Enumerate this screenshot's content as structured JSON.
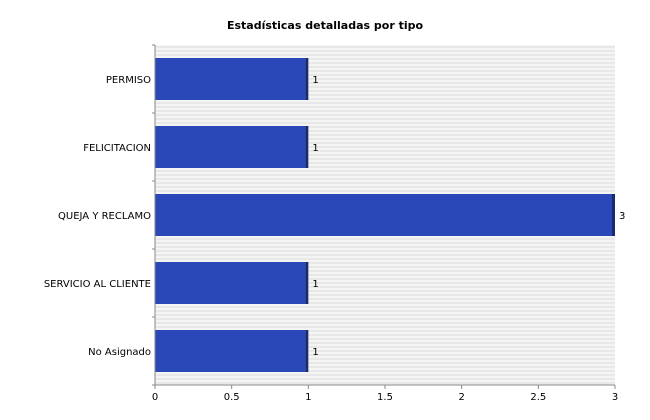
{
  "chart_data": {
    "type": "bar",
    "orientation": "horizontal",
    "title": "Estadísticas detalladas por tipo",
    "categories": [
      "PERMISO",
      "FELICITACION",
      "QUEJA Y RECLAMO",
      "SERVICIO AL CLIENTE",
      "No Asignado"
    ],
    "values": [
      1,
      1,
      3,
      1,
      1
    ],
    "data_labels": [
      "1",
      "1",
      "3",
      "1",
      "1"
    ],
    "xlim": [
      0,
      3
    ],
    "x_ticks": [
      0,
      0.5,
      1,
      1.5,
      2,
      2.5,
      3
    ],
    "x_tick_labels": [
      "0",
      "0.5",
      "1",
      "1.5",
      "2",
      "2.5",
      "3"
    ],
    "grid": true,
    "legend": false,
    "bar_color": "#2b48b8",
    "bar_edge_color": "#1a2a70",
    "plot_background": "#f4f4f4",
    "grid_color": "#dcdcdc"
  }
}
